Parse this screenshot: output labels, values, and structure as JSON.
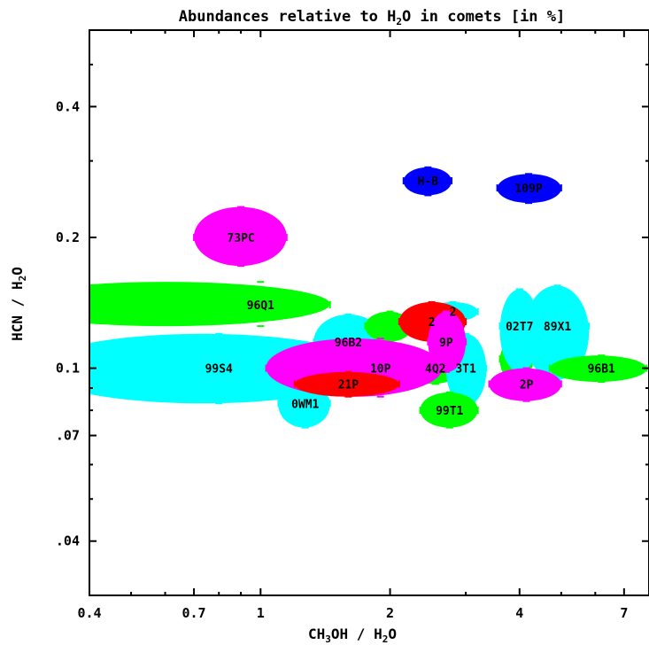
{
  "chart_data": {
    "type": "scatter",
    "title": "Abundances relative to H2O in comets [in %]",
    "title_parts": [
      "Abundances relative to H",
      "2",
      "O in comets [in %]"
    ],
    "xlabel": "CH3OH / H2O",
    "xlabel_parts": [
      "CH",
      "3",
      "OH / H",
      "2",
      "O"
    ],
    "ylabel": "HCN / H2O",
    "ylabel_parts": [
      "HCN / H",
      "2",
      "O"
    ],
    "x_scale": "log",
    "y_scale": "log",
    "xlim": [
      0.4,
      8
    ],
    "ylim": [
      0.03,
      0.6
    ],
    "x_ticks": [
      {
        "value": 0.4,
        "label": "0.4"
      },
      {
        "value": 0.7,
        "label": "0.7"
      },
      {
        "value": 1,
        "label": "1"
      },
      {
        "value": 2,
        "label": "2"
      },
      {
        "value": 4,
        "label": "4"
      },
      {
        "value": 7,
        "label": "7"
      }
    ],
    "y_ticks": [
      {
        "value": 0.04,
        "label": ".04"
      },
      {
        "value": 0.07,
        "label": ".07"
      },
      {
        "value": 0.1,
        "label": "0.1"
      },
      {
        "value": 0.2,
        "label": "0.2"
      },
      {
        "value": 0.4,
        "label": "0.4"
      }
    ],
    "colors": {
      "green": "#00ff00",
      "cyan": "#00ffff",
      "magenta": "#ff00ff",
      "red": "#ff0000",
      "blue": "#0000ff"
    },
    "points": [
      {
        "label": "96Q1",
        "x": 1.0,
        "y": 0.14,
        "x_err": [
          0.25,
          1.45
        ],
        "y_err": [
          0.125,
          0.158
        ],
        "color": "green"
      },
      {
        "label": "99S4",
        "x": 0.8,
        "y": 0.1,
        "x_err": [
          0.3,
          1.8
        ],
        "y_err": [
          0.083,
          0.12
        ],
        "color": "cyan"
      },
      {
        "label": "",
        "x": 1.45,
        "y": 0.1,
        "x_err": [
          0.7,
          2.2
        ],
        "y_err": [
          0.089,
          0.112
        ],
        "color": "cyan"
      },
      {
        "label": "73PC",
        "x": 0.9,
        "y": 0.2,
        "x_err": [
          0.7,
          1.15
        ],
        "y_err": [
          0.172,
          0.235
        ],
        "color": "magenta"
      },
      {
        "label": "H-B",
        "x": 2.45,
        "y": 0.27,
        "x_err": [
          2.15,
          2.78
        ],
        "y_err": [
          0.25,
          0.29
        ],
        "color": "blue"
      },
      {
        "label": "109P",
        "x": 4.2,
        "y": 0.26,
        "x_err": [
          3.55,
          5.0
        ],
        "y_err": [
          0.24,
          0.28
        ],
        "color": "blue"
      },
      {
        "label": "96B2",
        "x": 1.6,
        "y": 0.115,
        "x_err": [
          1.33,
          1.93
        ],
        "y_err": [
          0.1,
          0.133
        ],
        "color": "cyan"
      },
      {
        "label": "0WM1",
        "x": 1.27,
        "y": 0.083,
        "x_err": [
          1.1,
          1.45
        ],
        "y_err": [
          0.073,
          0.093
        ],
        "color": "cyan"
      },
      {
        "label": "",
        "x": 2.0,
        "y": 0.125,
        "x_err": [
          1.75,
          2.25
        ],
        "y_err": [
          0.115,
          0.135
        ],
        "color": "green"
      },
      {
        "label": "2",
        "x": 2.8,
        "y": 0.135,
        "x_err": [
          2.45,
          3.2
        ],
        "y_err": [
          0.128,
          0.142
        ],
        "color": "cyan"
      },
      {
        "label": "2",
        "x": 2.5,
        "y": 0.128,
        "x_err": [
          2.1,
          3.0
        ],
        "y_err": [
          0.115,
          0.142
        ],
        "color": "red"
      },
      {
        "label": "4Q2",
        "x": 2.55,
        "y": 0.1,
        "x_err": [
          2.2,
          2.9
        ],
        "y_err": [
          0.092,
          0.108
        ],
        "color": "green"
      },
      {
        "label": "3T1",
        "x": 3.0,
        "y": 0.1,
        "x_err": [
          2.7,
          3.35
        ],
        "y_err": [
          0.082,
          0.12
        ],
        "color": "cyan"
      },
      {
        "label": "9P",
        "x": 2.7,
        "y": 0.115,
        "x_err": [
          2.45,
          3.0
        ],
        "y_err": [
          0.098,
          0.135
        ],
        "color": "magenta"
      },
      {
        "label": "10P",
        "x": 1.9,
        "y": 0.1,
        "x_err": [
          1.03,
          2.65
        ],
        "y_err": [
          0.086,
          0.117
        ],
        "color": "magenta"
      },
      {
        "label": "21P",
        "x": 1.6,
        "y": 0.092,
        "x_err": [
          1.2,
          2.1
        ],
        "y_err": [
          0.086,
          0.098
        ],
        "color": "red"
      },
      {
        "label": "99T1",
        "x": 2.75,
        "y": 0.08,
        "x_err": [
          2.35,
          3.2
        ],
        "y_err": [
          0.073,
          0.088
        ],
        "color": "green"
      },
      {
        "label": "",
        "x": 4.0,
        "y": 0.105,
        "x_err": [
          3.6,
          4.3
        ],
        "y_err": [
          0.093,
          0.117
        ],
        "color": "green"
      },
      {
        "label": "02T7",
        "x": 4.0,
        "y": 0.125,
        "x_err": [
          3.6,
          4.45
        ],
        "y_err": [
          0.098,
          0.152
        ],
        "color": "cyan"
      },
      {
        "label": "89X1",
        "x": 4.9,
        "y": 0.125,
        "x_err": [
          4.1,
          5.8
        ],
        "y_err": [
          0.094,
          0.155
        ],
        "color": "cyan"
      },
      {
        "label": "96B1",
        "x": 6.2,
        "y": 0.1,
        "x_err": [
          4.7,
          7.9
        ],
        "y_err": [
          0.093,
          0.107
        ],
        "color": "green"
      },
      {
        "label": "2P",
        "x": 4.15,
        "y": 0.092,
        "x_err": [
          3.4,
          5.0
        ],
        "y_err": [
          0.084,
          0.1
        ],
        "color": "magenta"
      }
    ]
  }
}
